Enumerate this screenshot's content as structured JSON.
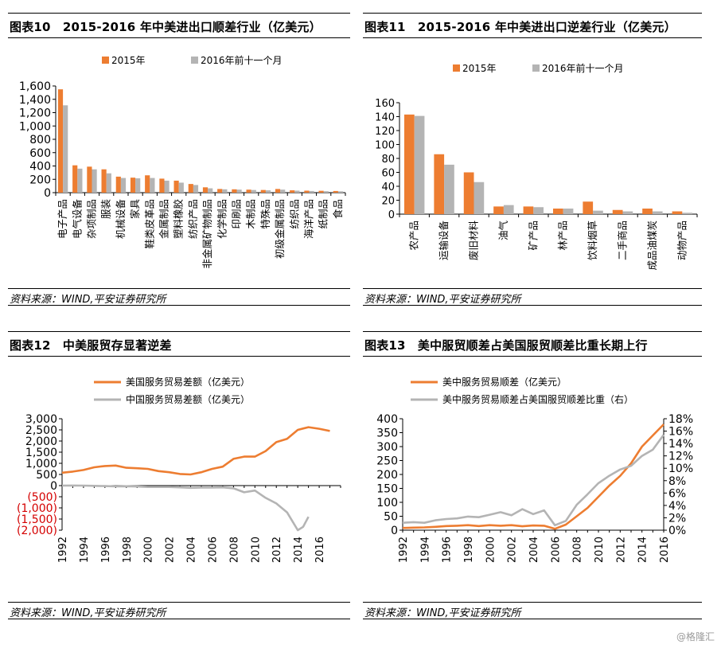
{
  "colors": {
    "orange": "#ED7D31",
    "gray": "#B4B4B4",
    "red": "#D40000"
  },
  "source_text": "资料来源：WIND,平安证券研究所",
  "watermark": "@格隆汇",
  "panels": [
    {
      "title": "图表10　2015-2016 年中美进出口顺差行业（亿美元）"
    },
    {
      "title": "图表11　2015-2016 年中美进出口逆差行业（亿美元）"
    },
    {
      "title": "图表12　中美服贸存显著逆差"
    },
    {
      "title": "图表13　美中服贸顺差占美国服贸顺差比重长期上行"
    }
  ],
  "chart_data": [
    {
      "type": "bar",
      "title": "2015-2016 年中美进出口顺差行业（亿美元）",
      "ylim": [
        0,
        1600
      ],
      "yticks": [
        "0",
        "200",
        "400",
        "600",
        "800",
        "1,000",
        "1,200",
        "1,400",
        "1,600"
      ],
      "categories": [
        "电子产品",
        "电气设备",
        "杂项制品",
        "服装",
        "机械设备",
        "家具",
        "鞋类皮革品",
        "金属制品",
        "塑料橡胶",
        "纺织产品",
        "非金属矿物制品",
        "化学制品",
        "印刷品",
        "木制品",
        "特殊品",
        "初级金属制品",
        "纺织品",
        "海洋产品",
        "纸制品",
        "食品"
      ],
      "series": [
        {
          "name": "2015年",
          "values": [
            1550,
            410,
            390,
            350,
            240,
            225,
            260,
            210,
            180,
            130,
            80,
            55,
            50,
            45,
            40,
            55,
            35,
            30,
            28,
            25
          ]
        },
        {
          "name": "2016年前十一个月",
          "values": [
            1310,
            360,
            350,
            290,
            220,
            215,
            220,
            180,
            150,
            115,
            65,
            50,
            45,
            40,
            35,
            45,
            30,
            25,
            22,
            20
          ]
        }
      ],
      "legend": "top"
    },
    {
      "type": "bar",
      "title": "2015-2016 年中美进出口逆差行业（亿美元）",
      "ylim": [
        0,
        160
      ],
      "yticks": [
        "0",
        "20",
        "40",
        "60",
        "80",
        "100",
        "120",
        "140",
        "160"
      ],
      "categories": [
        "农产品",
        "运输设备",
        "废旧材料",
        "油气",
        "矿产品",
        "林产品",
        "饮料烟草",
        "二手商品",
        "成品油煤炭",
        "动物产品"
      ],
      "series": [
        {
          "name": "2015年",
          "values": [
            143,
            86,
            60,
            11,
            11,
            8,
            18,
            6,
            8,
            4
          ]
        },
        {
          "name": "2016年前十一个月",
          "values": [
            141,
            71,
            46,
            13,
            10,
            8,
            5,
            4,
            4,
            2
          ]
        }
      ],
      "legend": "top"
    },
    {
      "type": "line",
      "title": "中美服贸存显著逆差",
      "xlim": [
        1992,
        2018
      ],
      "ylim": [
        -2000,
        3000
      ],
      "yticks": [
        "3,000",
        "2,500",
        "2,000",
        "1,500",
        "1,000",
        "500",
        "0",
        "(500)",
        "(1,000)",
        "(1,500)",
        "(2,000)"
      ],
      "xticks": [
        "1992",
        "1994",
        "1996",
        "1998",
        "2000",
        "2002",
        "2004",
        "2006",
        "2008",
        "2010",
        "2012",
        "2014",
        "2016"
      ],
      "series": [
        {
          "name": "美国服务贸易差额（亿美元）",
          "x": [
            1992,
            1993,
            1994,
            1995,
            1996,
            1997,
            1998,
            1999,
            2000,
            2001,
            2002,
            2003,
            2004,
            2005,
            2006,
            2007,
            2008,
            2009,
            2010,
            2011,
            2012,
            2013,
            2014,
            2015,
            2016,
            2017
          ],
          "values": [
            580,
            630,
            700,
            820,
            880,
            900,
            800,
            780,
            750,
            650,
            600,
            520,
            500,
            600,
            750,
            850,
            1200,
            1300,
            1300,
            1550,
            1950,
            2100,
            2500,
            2620,
            2550,
            2450
          ]
        },
        {
          "name": "中国服务贸易差额（亿美元）",
          "x": [
            1992,
            1993,
            1994,
            1995,
            1996,
            1997,
            1998,
            1999,
            2000,
            2001,
            2002,
            2003,
            2004,
            2005,
            2006,
            2007,
            2008,
            2009,
            2010,
            2011,
            2012,
            2013,
            2014,
            2014.5,
            2015
          ],
          "values": [
            0,
            5,
            0,
            -10,
            -20,
            -35,
            -30,
            -40,
            -60,
            -60,
            -60,
            -80,
            -100,
            -90,
            -90,
            -80,
            -120,
            -300,
            -220,
            -550,
            -800,
            -1200,
            -2000,
            -1850,
            -1400
          ]
        }
      ],
      "legend": "top"
    },
    {
      "type": "line",
      "title": "美中服贸顺差占美国服贸顺差比重长期上行",
      "xlim": [
        1992,
        2016
      ],
      "ylim": [
        0,
        400
      ],
      "y2lim": [
        0,
        18
      ],
      "yticks": [
        "0",
        "50",
        "100",
        "150",
        "200",
        "250",
        "300",
        "350",
        "400"
      ],
      "y2ticks": [
        "0%",
        "2%",
        "4%",
        "6%",
        "8%",
        "10%",
        "12%",
        "14%",
        "16%",
        "18%"
      ],
      "xticks": [
        "1992",
        "1994",
        "1996",
        "1998",
        "2000",
        "2002",
        "2004",
        "2006",
        "2008",
        "2010",
        "2012",
        "2014",
        "2016"
      ],
      "series": [
        {
          "name": "美中服务贸易顺差（亿美元）",
          "axis": "left",
          "x": [
            1992,
            1993,
            1994,
            1995,
            1996,
            1997,
            1998,
            1999,
            2000,
            2001,
            2002,
            2003,
            2004,
            2005,
            2006,
            2007,
            2008,
            2009,
            2010,
            2011,
            2012,
            2013,
            2014,
            2015,
            2016
          ],
          "values": [
            8,
            9,
            10,
            12,
            15,
            16,
            18,
            15,
            18,
            16,
            18,
            14,
            17,
            16,
            5,
            20,
            50,
            80,
            120,
            160,
            195,
            240,
            300,
            340,
            380
          ]
        },
        {
          "name": "美中服务贸易顺差占美国服贸顺差比重（右）",
          "axis": "right",
          "x": [
            1992,
            1993,
            1994,
            1995,
            1996,
            1997,
            1998,
            1999,
            2000,
            2001,
            2002,
            2003,
            2004,
            2005,
            2006,
            2007,
            2008,
            2009,
            2010,
            2011,
            2012,
            2013,
            2014,
            2015,
            2016
          ],
          "values": [
            1.2,
            1.3,
            1.2,
            1.6,
            1.8,
            1.9,
            2.2,
            2.1,
            2.5,
            2.9,
            2.4,
            3.4,
            2.6,
            3.2,
            0.8,
            1.5,
            4.1,
            5.8,
            7.6,
            8.8,
            9.8,
            10.4,
            12.0,
            13.0,
            15.4
          ]
        }
      ],
      "legend": "top"
    }
  ]
}
